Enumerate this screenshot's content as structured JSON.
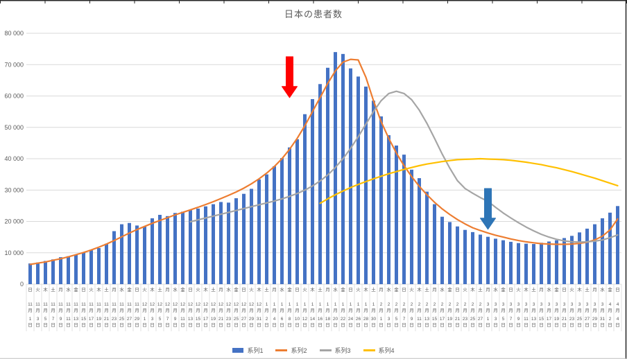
{
  "chart_data": {
    "type": "combo",
    "title": "日本の患者数",
    "grid": true,
    "legend_position": "bottom",
    "y_axis": {
      "min": 0,
      "max": 80000,
      "tick_interval": 10000,
      "tick_labels": [
        "0",
        "10 000",
        "20 000",
        "30 000",
        "40 000",
        "50 000",
        "60 000",
        "70 000",
        "80 000"
      ]
    },
    "x_axis": {
      "month_suffix": "月",
      "day_suffix": "日",
      "weekdays": [
        "日",
        "火",
        "木",
        "土",
        "月",
        "水",
        "金",
        "日",
        "火",
        "木",
        "土",
        "月",
        "水",
        "金",
        "日",
        "火",
        "木",
        "土",
        "月",
        "水",
        "金",
        "日",
        "火",
        "木",
        "土",
        "月",
        "水",
        "金",
        "日",
        "火",
        "木",
        "土",
        "月",
        "水",
        "金",
        "日",
        "火",
        "木",
        "土",
        "月",
        "水",
        "金",
        "日",
        "火",
        "木",
        "土",
        "月",
        "水",
        "金",
        "日",
        "火",
        "木",
        "土",
        "月",
        "水",
        "金",
        "日",
        "火",
        "木",
        "土",
        "月",
        "水",
        "金",
        "日",
        "火",
        "木",
        "土",
        "月",
        "水",
        "金",
        "日",
        "火",
        "木",
        "土",
        "月",
        "水",
        "金",
        "日"
      ],
      "months": [
        11,
        11,
        11,
        11,
        11,
        11,
        11,
        11,
        11,
        11,
        11,
        11,
        11,
        11,
        11,
        12,
        12,
        12,
        12,
        12,
        12,
        12,
        12,
        12,
        12,
        12,
        12,
        12,
        12,
        12,
        12,
        1,
        1,
        1,
        1,
        1,
        1,
        1,
        1,
        1,
        1,
        1,
        1,
        1,
        1,
        1,
        2,
        2,
        2,
        2,
        2,
        2,
        2,
        2,
        2,
        2,
        2,
        2,
        2,
        2,
        3,
        3,
        3,
        3,
        3,
        3,
        3,
        3,
        3,
        3,
        3,
        3,
        3,
        3,
        3,
        3,
        4,
        4
      ],
      "days": [
        1,
        3,
        5,
        7,
        9,
        11,
        13,
        15,
        17,
        19,
        21,
        23,
        25,
        27,
        29,
        1,
        3,
        5,
        7,
        9,
        11,
        13,
        15,
        17,
        19,
        21,
        23,
        25,
        27,
        29,
        31,
        2,
        4,
        6,
        8,
        10,
        12,
        14,
        16,
        18,
        20,
        22,
        24,
        26,
        28,
        30,
        1,
        3,
        5,
        7,
        9,
        11,
        13,
        15,
        17,
        19,
        21,
        23,
        25,
        27,
        1,
        3,
        5,
        7,
        9,
        11,
        13,
        15,
        17,
        19,
        21,
        23,
        25,
        27,
        29,
        31,
        2,
        4
      ]
    },
    "series": [
      {
        "name": "系列1",
        "type": "bar",
        "color": "#4472C4",
        "values": [
          6600,
          6900,
          7400,
          7900,
          8600,
          8900,
          9400,
          10100,
          10800,
          11500,
          12900,
          16900,
          19100,
          19500,
          18700,
          18400,
          21000,
          22100,
          21700,
          22700,
          23100,
          23600,
          24100,
          24800,
          25500,
          26200,
          26000,
          27400,
          28800,
          30400,
          33400,
          35000,
          37600,
          40200,
          43600,
          46200,
          54200,
          59000,
          63800,
          69000,
          74000,
          73400,
          68800,
          66200,
          63000,
          58500,
          53500,
          47500,
          44200,
          41300,
          36500,
          33800,
          29500,
          25500,
          21500,
          19800,
          18400,
          17300,
          16600,
          15800,
          15100,
          14500,
          14000,
          13500,
          13100,
          12900,
          12800,
          13200,
          13600,
          14000,
          14700,
          15400,
          16500,
          17700,
          19100,
          21000,
          22800,
          24900
        ]
      },
      {
        "name": "系列2",
        "type": "line",
        "color": "#ED7D31",
        "values": [
          6300,
          6700,
          7100,
          7600,
          8100,
          8700,
          9400,
          10100,
          10900,
          11800,
          12800,
          13900,
          15100,
          16300,
          17400,
          18400,
          19400,
          20300,
          21200,
          22100,
          22900,
          23700,
          24500,
          25400,
          26300,
          27300,
          28300,
          29400,
          30600,
          32000,
          33600,
          35400,
          37500,
          40000,
          43000,
          46500,
          50500,
          55000,
          59500,
          64000,
          68000,
          70800,
          71700,
          71500,
          66000,
          58500,
          51800,
          46500,
          41800,
          37800,
          34300,
          31200,
          28500,
          26100,
          24000,
          22200,
          20600,
          19200,
          18000,
          17100,
          16300,
          15600,
          15000,
          14400,
          13900,
          13500,
          13200,
          12900,
          12800,
          12700,
          12700,
          12800,
          13000,
          13400,
          14100,
          15300,
          17300,
          20800
        ]
      },
      {
        "name": "系列3",
        "type": "line",
        "color": "#A5A5A5",
        "values": [
          null,
          null,
          null,
          null,
          null,
          null,
          null,
          null,
          null,
          null,
          null,
          null,
          null,
          null,
          null,
          null,
          null,
          null,
          null,
          null,
          null,
          19900,
          20500,
          21100,
          21700,
          22300,
          22900,
          23500,
          24100,
          24700,
          25300,
          25900,
          26500,
          27200,
          28000,
          28900,
          30000,
          31300,
          32900,
          34800,
          37200,
          40000,
          43300,
          47000,
          51000,
          55000,
          58500,
          60800,
          61500,
          60800,
          58800,
          55500,
          51300,
          46500,
          41500,
          37000,
          33000,
          30500,
          29000,
          27600,
          26400,
          24500,
          22700,
          21100,
          19600,
          18200,
          17000,
          15900,
          15000,
          14300,
          13800,
          13500,
          13400,
          13500,
          13700,
          14100,
          14800,
          15700
        ]
      },
      {
        "name": "系列4",
        "type": "line",
        "color": "#FFC000",
        "values": [
          null,
          null,
          null,
          null,
          null,
          null,
          null,
          null,
          null,
          null,
          null,
          null,
          null,
          null,
          null,
          null,
          null,
          null,
          null,
          null,
          null,
          null,
          null,
          null,
          null,
          null,
          null,
          null,
          null,
          null,
          null,
          null,
          null,
          null,
          null,
          null,
          null,
          null,
          25800,
          27200,
          28500,
          29700,
          30800,
          31800,
          32700,
          33600,
          34400,
          35200,
          35900,
          36600,
          37200,
          37800,
          38300,
          38700,
          39100,
          39400,
          39700,
          39800,
          39900,
          40000,
          39900,
          39800,
          39700,
          39500,
          39200,
          38900,
          38500,
          38100,
          37600,
          37100,
          36500,
          35900,
          35200,
          34500,
          33800,
          33000,
          32200,
          31400
        ]
      }
    ],
    "annotations": [
      {
        "shape": "down-arrow",
        "name": "red-down-arrow",
        "color": "#FF0000",
        "x_index": 34,
        "tail_value": 72500,
        "tip_value": 59500
      },
      {
        "shape": "down-arrow",
        "name": "blue-down-arrow",
        "color": "#2E75B6",
        "x_index": 60,
        "tail_value": 30500,
        "tip_value": 17500
      }
    ]
  },
  "style_colors": {
    "gridline": "#D9D9D9",
    "axis_text": "#595959",
    "sheet_border": "#262626",
    "sheet_bottom_line": "#BFBFBF"
  }
}
